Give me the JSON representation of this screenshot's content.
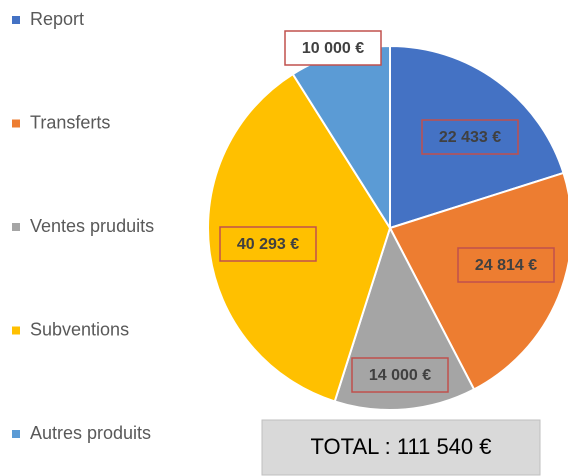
{
  "chart_data": {
    "type": "pie",
    "categories": [
      "Report",
      "Transferts",
      "Ventes pruduits",
      "Subventions",
      "Autres produits"
    ],
    "values": [
      22433,
      24814,
      14000,
      40293,
      10000
    ],
    "value_labels": [
      "22 433 €",
      "24 814 €",
      "14 000 €",
      "40 293 €",
      "10 000 €"
    ],
    "colors": [
      "#4472c4",
      "#ed7d31",
      "#a5a5a5",
      "#ffc000",
      "#5b9bd5"
    ],
    "annotation": "TOTAL : 111 540 €",
    "legend": "left"
  }
}
